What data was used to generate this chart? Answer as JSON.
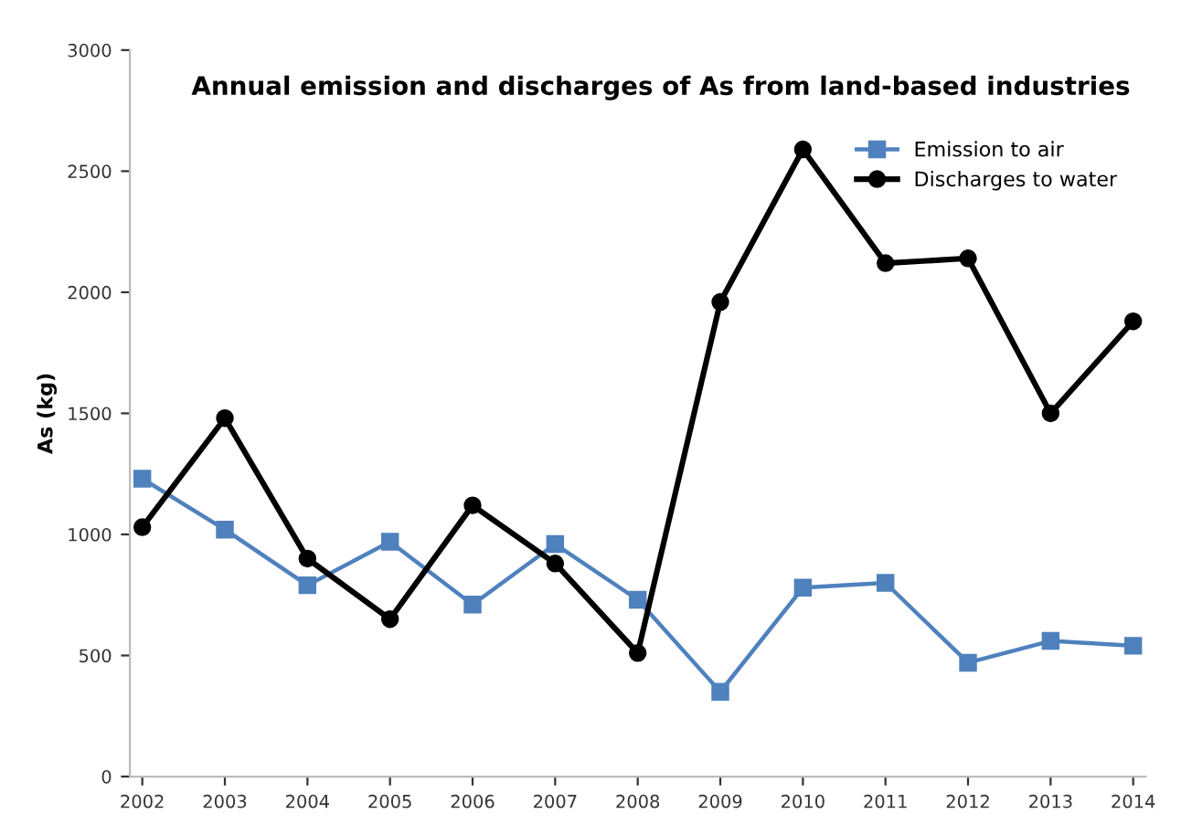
{
  "chart_data": {
    "type": "line",
    "title": "Annual emission and discharges of As from land-based industries",
    "ylabel": "As (kg)",
    "categories": [
      "2002",
      "2003",
      "2004",
      "2005",
      "2006",
      "2007",
      "2008",
      "2009",
      "2010",
      "2011",
      "2012",
      "2013",
      "2014"
    ],
    "series": [
      {
        "name": "Emission to air",
        "color": "#4f81bd",
        "marker": "square",
        "values": [
          1230,
          1020,
          790,
          970,
          710,
          960,
          730,
          350,
          780,
          800,
          470,
          560,
          540
        ]
      },
      {
        "name": "Discharges to water",
        "color": "#000000",
        "marker": "circle",
        "values": [
          1030,
          1480,
          900,
          650,
          1120,
          880,
          510,
          1960,
          2590,
          2120,
          2140,
          1500,
          1880
        ]
      }
    ],
    "ylim": [
      0,
      3000
    ],
    "yticks": [
      0,
      500,
      1000,
      1500,
      2000,
      2500,
      3000
    ],
    "grid": false,
    "legend": "top right",
    "line_style": "solid"
  }
}
